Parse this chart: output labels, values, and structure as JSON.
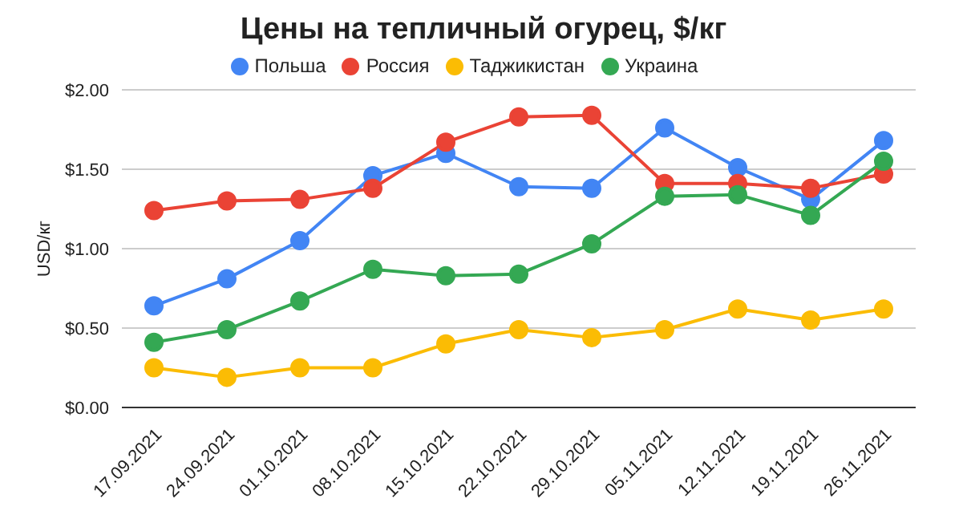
{
  "chart_data": {
    "type": "line",
    "title": "Цены на тепличный огурец, $/кг",
    "ylabel": "USD/кг",
    "categories": [
      "17.09.2021",
      "24.09.2021",
      "01.10.2021",
      "08.10.2021",
      "15.10.2021",
      "22.10.2021",
      "29.10.2021",
      "05.11.2021",
      "12.11.2021",
      "19.11.2021",
      "26.11.2021"
    ],
    "series": [
      {
        "name": "Польша",
        "color": "#4285f4",
        "values": [
          0.64,
          0.81,
          1.05,
          1.46,
          1.6,
          1.39,
          1.38,
          1.76,
          1.51,
          1.31,
          1.68
        ]
      },
      {
        "name": "Россия",
        "color": "#ea4335",
        "values": [
          1.24,
          1.3,
          1.31,
          1.38,
          1.67,
          1.83,
          1.84,
          1.41,
          1.41,
          1.38,
          1.47
        ]
      },
      {
        "name": "Таджикистан",
        "color": "#fbbc04",
        "values": [
          0.25,
          0.19,
          0.25,
          0.25,
          0.4,
          0.49,
          0.44,
          0.49,
          0.62,
          0.55,
          0.62
        ]
      },
      {
        "name": "Украина",
        "color": "#34a853",
        "values": [
          0.41,
          0.49,
          0.67,
          0.87,
          0.83,
          0.84,
          1.03,
          1.33,
          1.34,
          1.21,
          1.55
        ]
      }
    ],
    "ylim": [
      0,
      2
    ],
    "yticks": [
      {
        "value": 0,
        "label": "$0.00"
      },
      {
        "value": 0.5,
        "label": "$0.50"
      },
      {
        "value": 1,
        "label": "$1.00"
      },
      {
        "value": 1.5,
        "label": "$1.50"
      },
      {
        "value": 2,
        "label": "$2.00"
      }
    ],
    "grid": "y",
    "legend": "top",
    "marker": "circle",
    "line_style": "solid"
  }
}
